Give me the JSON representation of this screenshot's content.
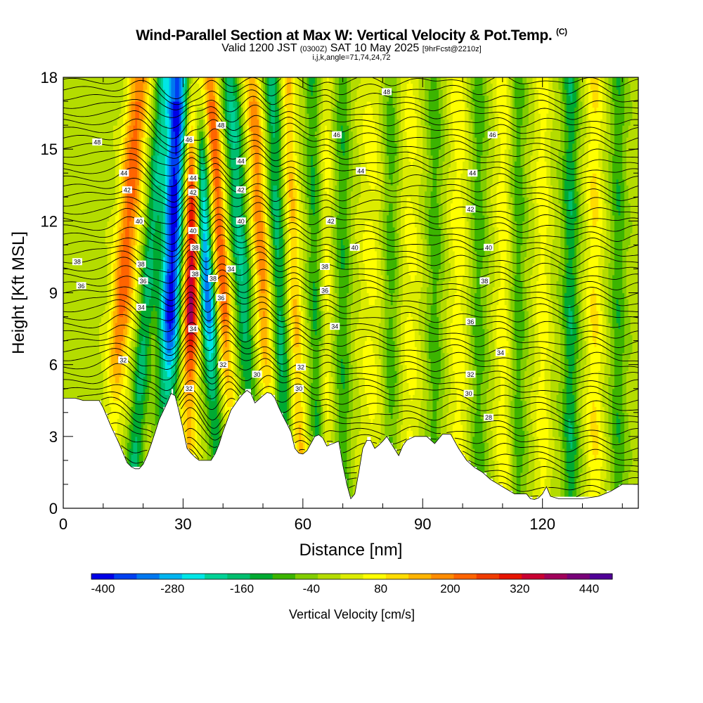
{
  "title": {
    "main": "Wind-Parallel Section at Max W: Vertical Velocity & Pot.Temp.",
    "copyright": "(C)",
    "valid_prefix": "Valid 1200 JST",
    "valid_utc": "(0300Z)",
    "valid_date": "SAT 10 May 2025",
    "forecast": "[9hrFcst@2210z]",
    "section": "i,j,k,angle=71,74,24,72"
  },
  "colors": {
    "palette": [
      "#0000e6",
      "#0040f0",
      "#0078f0",
      "#00b4f0",
      "#00e6e6",
      "#00d296",
      "#00be6e",
      "#00aa32",
      "#3cb400",
      "#82cd00",
      "#b4dc00",
      "#dcec00",
      "#ffff00",
      "#ffdc00",
      "#ffb400",
      "#ff8c00",
      "#ff6400",
      "#f03c00",
      "#e61400",
      "#c80032",
      "#a0005a",
      "#780078",
      "#500096"
    ],
    "axis": "#000000",
    "contour": "#000000",
    "terrain": "#ffffff"
  },
  "chart_data": {
    "type": "heatmap",
    "xlabel": "Distance [nm]",
    "ylabel": "Height [Kft MSL]",
    "xlim": [
      0,
      144
    ],
    "ylim": [
      0,
      18
    ],
    "x_ticks": [
      0,
      30,
      60,
      90,
      120
    ],
    "y_ticks": [
      0,
      3,
      6,
      9,
      12,
      15,
      18
    ],
    "colorbar": {
      "label": "Vertical Velocity [cm/s]",
      "ticks": [
        -400,
        -280,
        -160,
        -40,
        80,
        200,
        320,
        440
      ],
      "range": [
        -420,
        480
      ],
      "step": 40
    },
    "vertical_velocity_bands": [
      {
        "x": 15,
        "w": 2.8,
        "amp": 240,
        "tilt": 0.45
      },
      {
        "x": 21,
        "w": 2.0,
        "amp": -150,
        "tilt": 0.45
      },
      {
        "x": 27,
        "w": 2.7,
        "amp": -400,
        "tilt": 0.2
      },
      {
        "x": 32,
        "w": 2.1,
        "amp": 400,
        "tilt": 0.1
      },
      {
        "x": 36,
        "w": 2.0,
        "amp": -330,
        "tilt": -0.35
      },
      {
        "x": 40,
        "w": 1.9,
        "amp": 250,
        "tilt": -0.35
      },
      {
        "x": 45,
        "w": 2.3,
        "amp": -180,
        "tilt": -0.35
      },
      {
        "x": 50,
        "w": 2.2,
        "amp": 200,
        "tilt": -0.3
      },
      {
        "x": 54,
        "w": 2.0,
        "amp": -150,
        "tilt": -0.2
      },
      {
        "x": 58,
        "w": 1.8,
        "amp": 140,
        "tilt": -0.2
      },
      {
        "x": 63,
        "w": 1.8,
        "amp": -100,
        "tilt": -0.1
      },
      {
        "x": 66,
        "w": 1.5,
        "amp": 70,
        "tilt": 0
      },
      {
        "x": 70,
        "w": 2.0,
        "amp": -90,
        "tilt": 0
      },
      {
        "x": 77,
        "w": 3.0,
        "amp": 70,
        "tilt": 0
      },
      {
        "x": 82,
        "w": 2.0,
        "amp": -80,
        "tilt": 0
      },
      {
        "x": 87,
        "w": 2.5,
        "amp": 70,
        "tilt": 0
      },
      {
        "x": 93,
        "w": 2.0,
        "amp": -80,
        "tilt": 0
      },
      {
        "x": 99,
        "w": 2.5,
        "amp": 80,
        "tilt": 0
      },
      {
        "x": 104,
        "w": 2.0,
        "amp": -80,
        "tilt": 0
      },
      {
        "x": 110,
        "w": 2.0,
        "amp": 80,
        "tilt": 0
      },
      {
        "x": 114,
        "w": 1.8,
        "amp": -80,
        "tilt": 0
      },
      {
        "x": 120,
        "w": 2.0,
        "amp": 80,
        "tilt": 0
      },
      {
        "x": 127,
        "w": 2.0,
        "amp": -130,
        "tilt": 0
      },
      {
        "x": 133,
        "w": 2.2,
        "amp": 100,
        "tilt": 0
      },
      {
        "x": 139,
        "w": 2.0,
        "amp": -90,
        "tilt": 0
      }
    ],
    "terrain_height_kft": [
      [
        0,
        4.6
      ],
      [
        3,
        4.6
      ],
      [
        5,
        4.5
      ],
      [
        9,
        4.5
      ],
      [
        10,
        4.2
      ],
      [
        12,
        3.4
      ],
      [
        14,
        2.7
      ],
      [
        15,
        2.3
      ],
      [
        16,
        1.9
      ],
      [
        17.5,
        1.65
      ],
      [
        19.5,
        1.65
      ],
      [
        21,
        2.2
      ],
      [
        22.5,
        2.9
      ],
      [
        24,
        3.7
      ],
      [
        26,
        4.4
      ],
      [
        27.5,
        5.0
      ],
      [
        28.5,
        4.4
      ],
      [
        30,
        3.3
      ],
      [
        31,
        2.5
      ],
      [
        32.5,
        2.2
      ],
      [
        34,
        2.0
      ],
      [
        37,
        2.0
      ],
      [
        38.5,
        2.4
      ],
      [
        40,
        3.2
      ],
      [
        42,
        4.1
      ],
      [
        44.5,
        4.7
      ],
      [
        46.5,
        5.0
      ],
      [
        48,
        4.4
      ],
      [
        50,
        4.7
      ],
      [
        51.5,
        4.9
      ],
      [
        53,
        4.6
      ],
      [
        54.5,
        4.0
      ],
      [
        55.5,
        3.7
      ],
      [
        57,
        3.2
      ],
      [
        58,
        2.5
      ],
      [
        59.5,
        2.2
      ],
      [
        61,
        2.4
      ],
      [
        63,
        3.0
      ],
      [
        64.5,
        3.1
      ],
      [
        66,
        2.6
      ],
      [
        67.5,
        2.7
      ],
      [
        69,
        2.8
      ],
      [
        70,
        1.8
      ],
      [
        71,
        1.0
      ],
      [
        72,
        0.4
      ],
      [
        73,
        0.6
      ],
      [
        74,
        1.5
      ],
      [
        75,
        2.5
      ],
      [
        76.5,
        3.0
      ],
      [
        78,
        2.5
      ],
      [
        79.5,
        2.7
      ],
      [
        81,
        3.0
      ],
      [
        82.5,
        2.6
      ],
      [
        84,
        2.2
      ],
      [
        85.5,
        2.8
      ],
      [
        88,
        3.0
      ],
      [
        91,
        3.0
      ],
      [
        93,
        2.7
      ],
      [
        95,
        3.1
      ],
      [
        97,
        3.1
      ],
      [
        99,
        2.5
      ],
      [
        101,
        2.0
      ],
      [
        103,
        1.7
      ],
      [
        105,
        1.5
      ],
      [
        107,
        1.2
      ],
      [
        109,
        1.0
      ],
      [
        111,
        0.8
      ],
      [
        113,
        0.6
      ],
      [
        116,
        0.6
      ],
      [
        117,
        0.4
      ],
      [
        118.5,
        0.35
      ],
      [
        120,
        0.6
      ],
      [
        121,
        0.9
      ],
      [
        122,
        0.5
      ],
      [
        124,
        0.4
      ],
      [
        130,
        0.4
      ],
      [
        134,
        0.5
      ],
      [
        137,
        0.7
      ],
      [
        140,
        1.0
      ],
      [
        144,
        1.0
      ]
    ],
    "potential_temperature_contour_labels": [
      {
        "text": "48",
        "x": 8.5,
        "y": 15.3
      },
      {
        "text": "44",
        "x": 15.2,
        "y": 14.0
      },
      {
        "text": "42",
        "x": 16.0,
        "y": 13.3
      },
      {
        "text": "40",
        "x": 19.0,
        "y": 12.0
      },
      {
        "text": "38",
        "x": 3.5,
        "y": 10.3
      },
      {
        "text": "38",
        "x": 19.5,
        "y": 10.2
      },
      {
        "text": "36",
        "x": 4.5,
        "y": 9.3
      },
      {
        "text": "36",
        "x": 20.0,
        "y": 9.5
      },
      {
        "text": "34",
        "x": 19.5,
        "y": 8.4
      },
      {
        "text": "32",
        "x": 15.0,
        "y": 6.2
      },
      {
        "text": "46",
        "x": 31.5,
        "y": 15.4
      },
      {
        "text": "44",
        "x": 32.5,
        "y": 13.8
      },
      {
        "text": "42",
        "x": 32.5,
        "y": 13.2
      },
      {
        "text": "40",
        "x": 32.5,
        "y": 11.6
      },
      {
        "text": "38",
        "x": 33.0,
        "y": 10.9
      },
      {
        "text": "38",
        "x": 33.0,
        "y": 9.8
      },
      {
        "text": "34",
        "x": 32.5,
        "y": 7.5
      },
      {
        "text": "32",
        "x": 31.5,
        "y": 5.0
      },
      {
        "text": "48",
        "x": 39.5,
        "y": 16.0
      },
      {
        "text": "44",
        "x": 44.5,
        "y": 14.5
      },
      {
        "text": "42",
        "x": 44.5,
        "y": 13.3
      },
      {
        "text": "40",
        "x": 44.5,
        "y": 12.0
      },
      {
        "text": "38",
        "x": 37.5,
        "y": 9.6
      },
      {
        "text": "36",
        "x": 39.5,
        "y": 8.8
      },
      {
        "text": "34",
        "x": 42.0,
        "y": 10.0
      },
      {
        "text": "32",
        "x": 40.0,
        "y": 6.0
      },
      {
        "text": "30",
        "x": 48.5,
        "y": 5.6
      },
      {
        "text": "48",
        "x": 81.0,
        "y": 17.4
      },
      {
        "text": "46",
        "x": 68.5,
        "y": 15.6
      },
      {
        "text": "44",
        "x": 74.5,
        "y": 14.1
      },
      {
        "text": "42",
        "x": 67.0,
        "y": 12.0
      },
      {
        "text": "40",
        "x": 73.0,
        "y": 10.9
      },
      {
        "text": "38",
        "x": 65.5,
        "y": 10.1
      },
      {
        "text": "36",
        "x": 65.5,
        "y": 9.1
      },
      {
        "text": "34",
        "x": 68.0,
        "y": 7.6
      },
      {
        "text": "32",
        "x": 59.5,
        "y": 5.9
      },
      {
        "text": "30",
        "x": 59.0,
        "y": 5.0
      },
      {
        "text": "46",
        "x": 107.5,
        "y": 15.6
      },
      {
        "text": "44",
        "x": 102.5,
        "y": 14.0
      },
      {
        "text": "42",
        "x": 102.0,
        "y": 12.5
      },
      {
        "text": "40",
        "x": 106.5,
        "y": 10.9
      },
      {
        "text": "38",
        "x": 105.5,
        "y": 9.5
      },
      {
        "text": "36",
        "x": 102.0,
        "y": 7.8
      },
      {
        "text": "34",
        "x": 109.5,
        "y": 6.5
      },
      {
        "text": "32",
        "x": 102.0,
        "y": 5.6
      },
      {
        "text": "30",
        "x": 101.5,
        "y": 4.8
      },
      {
        "text": "28",
        "x": 106.5,
        "y": 3.8
      }
    ]
  }
}
